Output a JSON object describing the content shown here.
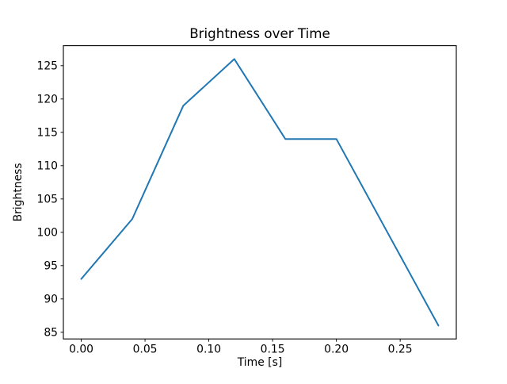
{
  "chart_data": {
    "type": "line",
    "title": "Brightness over Time",
    "xlabel": "Time [s]",
    "ylabel": "Brightness",
    "x": [
      0.0,
      0.04,
      0.08,
      0.12,
      0.16,
      0.2,
      0.24,
      0.28
    ],
    "y": [
      93,
      102,
      119,
      126,
      114,
      114,
      100,
      86
    ],
    "series_name": "Brightness",
    "xlim": [
      -0.014,
      0.294
    ],
    "ylim": [
      84,
      128
    ],
    "xticks": [
      0.0,
      0.05,
      0.1,
      0.15,
      0.2,
      0.25
    ],
    "xtick_labels": [
      "0.00",
      "0.05",
      "0.10",
      "0.15",
      "0.20",
      "0.25"
    ],
    "yticks": [
      85,
      90,
      95,
      100,
      105,
      110,
      115,
      120,
      125
    ],
    "ytick_labels": [
      "85",
      "90",
      "95",
      "100",
      "105",
      "110",
      "115",
      "120",
      "125"
    ],
    "line_color": "#1f77b4",
    "axis_color": "#000000",
    "background_color": "#ffffff",
    "grid": false,
    "legend_position": "none"
  }
}
